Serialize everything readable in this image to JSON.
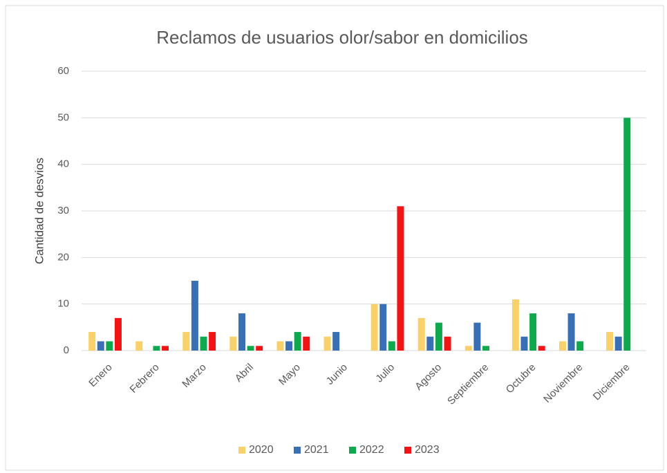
{
  "chart_data": {
    "type": "bar",
    "title": "Reclamos de usuarios olor/sabor en domicilios",
    "y_label": "Cantidad de desvios",
    "categories": [
      "Enero",
      "Febrero",
      "Marzo",
      "Abril",
      "Mayo",
      "Junio",
      "Julio",
      "Agosto",
      "Septiembre",
      "Octubre",
      "Noviembre",
      "Diciembre"
    ],
    "series": [
      {
        "name": "2020",
        "color": "#f8d16a",
        "values": [
          4,
          2,
          4,
          3,
          2,
          3,
          10,
          7,
          1,
          11,
          2,
          4
        ]
      },
      {
        "name": "2021",
        "color": "#3a6fb4",
        "values": [
          2,
          0,
          15,
          8,
          2,
          4,
          10,
          3,
          6,
          3,
          8,
          3
        ]
      },
      {
        "name": "2022",
        "color": "#10a84e",
        "values": [
          2,
          1,
          3,
          1,
          4,
          0,
          2,
          6,
          1,
          8,
          2,
          50
        ]
      },
      {
        "name": "2023",
        "color": "#f01414",
        "values": [
          7,
          1,
          4,
          1,
          3,
          0,
          31,
          3,
          0,
          1,
          0,
          0
        ]
      }
    ],
    "ylim": [
      0,
      60
    ],
    "yticks": [
      0,
      10,
      20,
      30,
      40,
      50,
      60
    ],
    "grid": true,
    "legend": "bottom"
  }
}
